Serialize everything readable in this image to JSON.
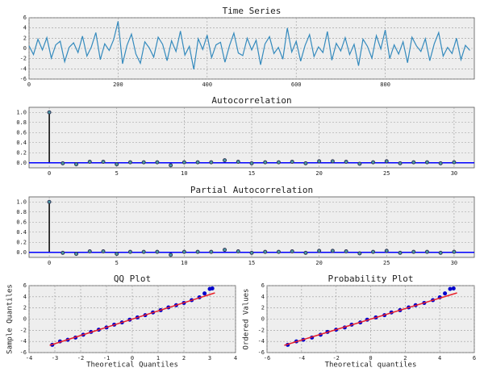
{
  "chart_data": [
    {
      "type": "line",
      "title": "Time Series",
      "color": "#348abd",
      "grid": true,
      "x": [
        0,
        10,
        20,
        30,
        40,
        50,
        60,
        70,
        80,
        90,
        100,
        110,
        120,
        130,
        140,
        150,
        160,
        170,
        180,
        190,
        200,
        210,
        220,
        230,
        240,
        250,
        260,
        270,
        280,
        290,
        300,
        310,
        320,
        330,
        340,
        350,
        360,
        370,
        380,
        390,
        400,
        410,
        420,
        430,
        440,
        450,
        460,
        470,
        480,
        490,
        500,
        510,
        520,
        530,
        540,
        550,
        560,
        570,
        580,
        590,
        600,
        610,
        620,
        630,
        640,
        650,
        660,
        670,
        680,
        690,
        700,
        710,
        720,
        730,
        740,
        750,
        760,
        770,
        780,
        790,
        800,
        810,
        820,
        830,
        840,
        850,
        860,
        870,
        880,
        890,
        900,
        910,
        920,
        930,
        940,
        950,
        960,
        970,
        980,
        990
      ],
      "values": [
        0.5,
        -1.2,
        1.8,
        -0.3,
        2.1,
        -1.9,
        0.7,
        1.4,
        -2.6,
        0.2,
        1.1,
        -0.8,
        2.4,
        -1.5,
        0.3,
        3.1,
        -2.2,
        0.9,
        -0.4,
        1.7,
        5.3,
        -3.0,
        0.6,
        2.8,
        -1.1,
        -2.9,
        1.3,
        0.1,
        -1.7,
        2.2,
        0.8,
        -2.4,
        1.5,
        -0.6,
        3.4,
        -1.3,
        0.4,
        -4.1,
        1.9,
        -0.2,
        2.6,
        -1.8,
        0.7,
        1.2,
        -2.7,
        0.5,
        3.0,
        -0.9,
        -1.4,
        2.0,
        -0.3,
        1.6,
        -3.2,
        0.9,
        2.3,
        -1.0,
        0.2,
        -2.1,
        4.0,
        -0.7,
        1.4,
        -2.5,
        0.6,
        2.7,
        -1.6,
        0.3,
        -0.8,
        3.3,
        -2.3,
        1.0,
        -0.5,
        2.1,
        -1.2,
        0.8,
        -3.4,
        1.8,
        0.4,
        -1.9,
        2.5,
        -0.1,
        3.6,
        -2.0,
        0.7,
        -1.1,
        1.3,
        -2.8,
        2.2,
        0.5,
        -0.6,
        1.9,
        -2.4,
        0.9,
        3.1,
        -1.5,
        0.2,
        -1.0,
        2.0,
        -2.2,
        0.6,
        -0.4
      ],
      "xlim": [
        0,
        1000
      ],
      "xticks": [
        0,
        200,
        400,
        600,
        800
      ],
      "ylim": [
        -6,
        6
      ],
      "yticks": [
        -6,
        -4,
        -2,
        0,
        2,
        4,
        6
      ]
    },
    {
      "type": "stem",
      "title": "Autocorrelation",
      "color": "#4c9fa8",
      "line_color": "#0000ff",
      "axhline": 0,
      "grid": true,
      "x": [
        0,
        1,
        2,
        3,
        4,
        5,
        6,
        7,
        8,
        9,
        10,
        11,
        12,
        13,
        14,
        15,
        16,
        17,
        18,
        19,
        20,
        21,
        22,
        23,
        24,
        25,
        26,
        27,
        28,
        29,
        30
      ],
      "values": [
        1,
        -0.01,
        -0.03,
        0.02,
        0.02,
        -0.03,
        0.01,
        0.01,
        0.01,
        -0.05,
        0.01,
        0.01,
        0.01,
        0.05,
        0.02,
        -0.01,
        0.01,
        0.01,
        0.02,
        -0.01,
        0.03,
        0.03,
        0.02,
        -0.02,
        0.01,
        0.03,
        -0.01,
        0.01,
        0.01,
        -0.01,
        0.01
      ],
      "xlim": [
        -1.5,
        31.5
      ],
      "xticks": [
        0,
        5,
        10,
        15,
        20,
        25,
        30
      ],
      "ylim": [
        -0.1,
        1.1
      ],
      "yticks": [
        {
          "value": 0,
          "label": "0.0"
        },
        {
          "value": 0.2,
          "label": "0.2"
        },
        {
          "value": 0.4,
          "label": "0.4"
        },
        {
          "value": 0.6,
          "label": "0.6"
        },
        {
          "value": 0.8,
          "label": "0.8"
        },
        {
          "value": 1,
          "label": "1.0"
        }
      ]
    },
    {
      "type": "stem",
      "title": "Partial Autocorrelation",
      "color": "#4c9fa8",
      "line_color": "#0000ff",
      "axhline": 0,
      "grid": true,
      "x": [
        0,
        1,
        2,
        3,
        4,
        5,
        6,
        7,
        8,
        9,
        10,
        11,
        12,
        13,
        14,
        15,
        16,
        17,
        18,
        19,
        20,
        21,
        22,
        23,
        24,
        25,
        26,
        27,
        28,
        29,
        30
      ],
      "values": [
        1,
        -0.01,
        -0.03,
        0.02,
        0.02,
        -0.03,
        0.01,
        0.01,
        0.01,
        -0.05,
        0.01,
        0.01,
        0.01,
        0.05,
        0.02,
        -0.01,
        0.01,
        0.01,
        0.02,
        -0.01,
        0.03,
        0.03,
        0.02,
        -0.02,
        0.01,
        0.03,
        -0.01,
        0.01,
        0.01,
        -0.01,
        0.01
      ],
      "xlim": [
        -1.5,
        31.5
      ],
      "xticks": [
        0,
        5,
        10,
        15,
        20,
        25,
        30
      ],
      "ylim": [
        -0.1,
        1.1
      ],
      "yticks": [
        {
          "value": 0,
          "label": "0.0"
        },
        {
          "value": 0.2,
          "label": "0.2"
        },
        {
          "value": 0.4,
          "label": "0.4"
        },
        {
          "value": 0.6,
          "label": "0.6"
        },
        {
          "value": 0.8,
          "label": "0.8"
        },
        {
          "value": 1,
          "label": "1.0"
        }
      ]
    },
    {
      "type": "scatter",
      "title": "QQ Plot",
      "xlabel": "Theoretical Quantiles",
      "ylabel": "Sample Quantiles",
      "color": "#0000cc",
      "line_color": "#e8202a",
      "grid": true,
      "x": [
        -3.1,
        -2.8,
        -2.5,
        -2.2,
        -1.9,
        -1.6,
        -1.3,
        -1.0,
        -0.7,
        -0.4,
        -0.1,
        0.2,
        0.5,
        0.8,
        1.1,
        1.4,
        1.7,
        2.0,
        2.3,
        2.6,
        2.8,
        3.0,
        3.1
      ],
      "values": [
        -4.6,
        -4.0,
        -3.7,
        -3.3,
        -2.8,
        -2.3,
        -1.9,
        -1.5,
        -1.0,
        -0.6,
        -0.1,
        0.3,
        0.7,
        1.2,
        1.6,
        2.1,
        2.5,
        2.9,
        3.4,
        3.9,
        4.6,
        5.4,
        5.5
      ],
      "fit_line": {
        "x": [
          -3.2,
          3.2
        ],
        "y": [
          -4.7,
          4.7
        ]
      },
      "xlim": [
        -4,
        4
      ],
      "xticks": [
        -4,
        -3,
        -2,
        -1,
        0,
        1,
        2,
        3,
        4
      ],
      "ylim": [
        -6,
        6
      ],
      "yticks": [
        -6,
        -4,
        -2,
        0,
        2,
        4,
        6
      ]
    },
    {
      "type": "scatter",
      "title": "Probability Plot",
      "xlabel": "Theoretical quantiles",
      "ylabel": "Ordered Values",
      "color": "#0000cc",
      "line_color": "#e8202a",
      "grid": true,
      "x": [
        -4.8,
        -4.3,
        -3.9,
        -3.4,
        -2.9,
        -2.5,
        -2.0,
        -1.5,
        -1.1,
        -0.6,
        -0.2,
        0.3,
        0.8,
        1.2,
        1.7,
        2.2,
        2.6,
        3.1,
        3.6,
        4.0,
        4.3,
        4.6,
        4.8
      ],
      "values": [
        -4.6,
        -4.0,
        -3.7,
        -3.3,
        -2.8,
        -2.3,
        -1.9,
        -1.5,
        -1.0,
        -0.6,
        -0.1,
        0.3,
        0.7,
        1.2,
        1.6,
        2.1,
        2.5,
        2.9,
        3.4,
        3.9,
        4.6,
        5.4,
        5.5
      ],
      "fit_line": {
        "x": [
          -5,
          5
        ],
        "y": [
          -4.7,
          4.7
        ]
      },
      "xlim": [
        -6,
        6
      ],
      "xticks": [
        -6,
        -4,
        -2,
        0,
        2,
        4,
        6
      ],
      "ylim": [
        -6,
        6
      ],
      "yticks": [
        -6,
        -4,
        -2,
        0,
        2,
        4,
        6
      ]
    }
  ]
}
